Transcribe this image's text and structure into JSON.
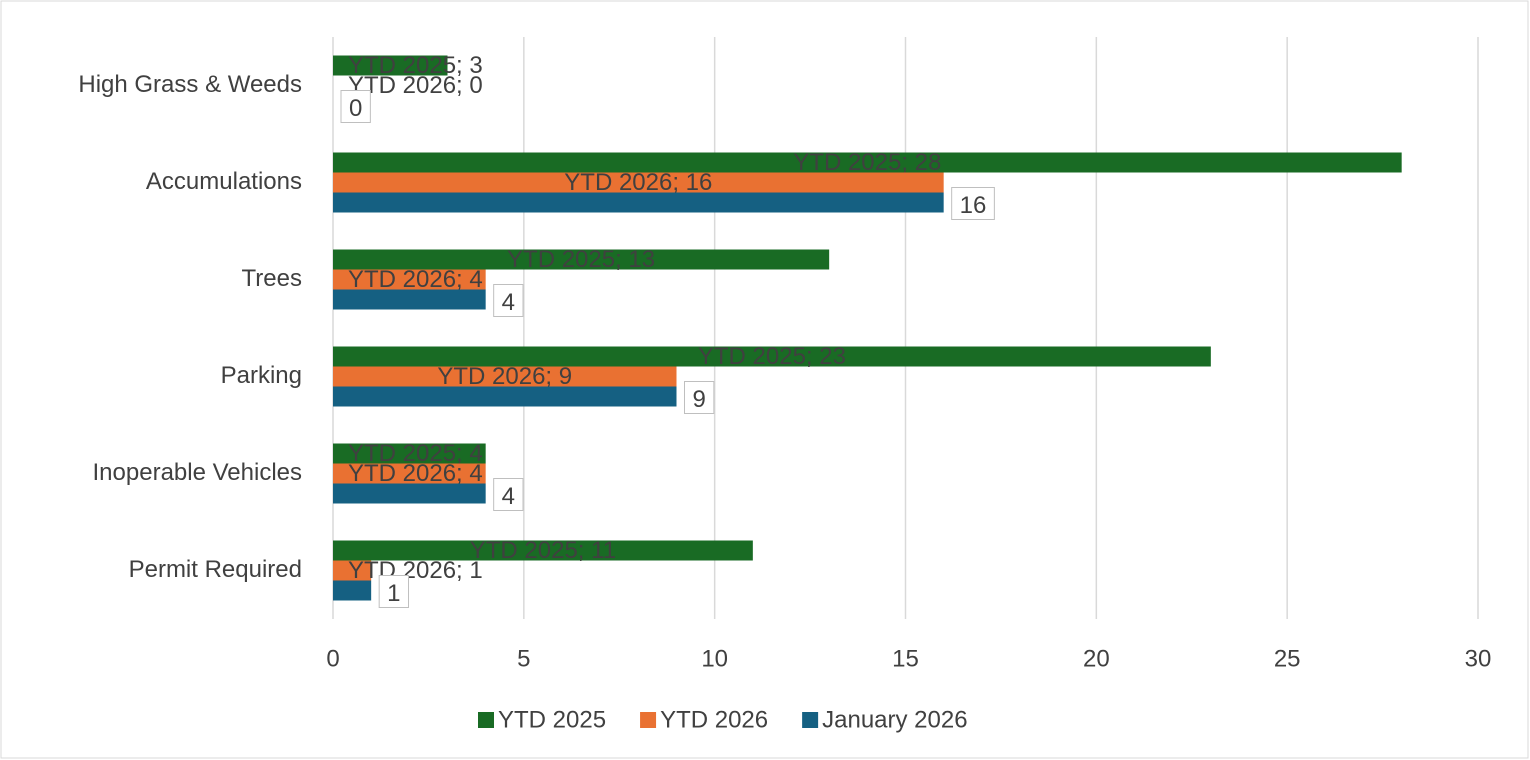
{
  "chart_data": {
    "type": "hbar",
    "categories": [
      "High Grass & Weeds",
      "Accumulations",
      "Trees",
      "Parking",
      "Inoperable Vehicles",
      "Permit Required"
    ],
    "series": [
      {
        "name": "YTD 2025",
        "color": "#196b24",
        "values": [
          3,
          28,
          13,
          23,
          4,
          11
        ],
        "value_labels": [
          "YTD 2025; 3",
          "YTD 2025; 28",
          "YTD 2025; 13",
          "YTD 2025; 23",
          "YTD 2025; 4",
          "YTD 2025; 11"
        ]
      },
      {
        "name": "YTD 2026",
        "color": "#e97132",
        "values": [
          0,
          16,
          4,
          9,
          4,
          1
        ],
        "value_labels": [
          "YTD 2026; 0",
          "YTD 2026; 16",
          "YTD 2026; 4",
          "YTD 2026; 9",
          "YTD 2026; 4",
          "YTD 2026; 1"
        ]
      },
      {
        "name": "January 2026",
        "color": "#156082",
        "values": [
          0,
          16,
          4,
          9,
          4,
          1
        ]
      }
    ],
    "xlim": [
      0,
      30
    ],
    "xticks": [
      0,
      5,
      10,
      15,
      20,
      25,
      30
    ],
    "grid": true,
    "legend": "bottom"
  }
}
